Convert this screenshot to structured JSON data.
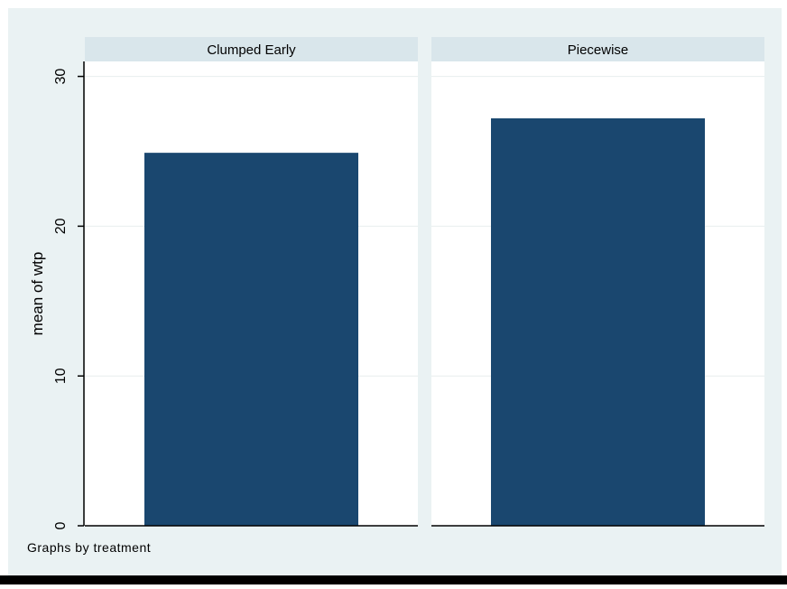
{
  "chart_data": {
    "type": "bar",
    "ylabel": "mean of wtp",
    "ylim": [
      0,
      31
    ],
    "yticks": [
      0,
      10,
      20,
      30
    ],
    "grid": true,
    "note": "Graphs by treatment",
    "panels": [
      {
        "title": "Clumped Early",
        "value": 24.9
      },
      {
        "title": "Piecewise",
        "value": 27.2
      }
    ],
    "colors": {
      "bar": "#1a476f",
      "background": "#eaf2f3",
      "panel": "#ffffff",
      "strip": "#d9e6eb",
      "grid": "#e8eeee",
      "axis": "#000000"
    }
  }
}
